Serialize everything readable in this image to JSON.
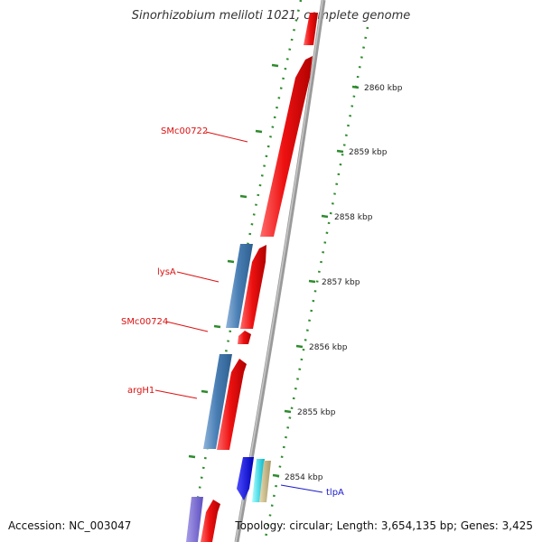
{
  "header": {
    "title": "Sinorhizobium meliloti 1021, complete genome"
  },
  "footer": {
    "accession": "Accession: NC_003047",
    "summary": "Topology: circular; Length: 3,654,135 bp; Genes: 3,425"
  },
  "colors": {
    "forward_gene": "#ee1111",
    "reverse_gene": "#4a7fb5",
    "backbone": "#8c8c8c",
    "tick": "#2e8b2e",
    "gene_label": "#dd1111",
    "special_label": "#1a1acc"
  },
  "map": {
    "kbp_labels": [
      "2860 kbp",
      "2859 kbp",
      "2858 kbp",
      "2857 kbp",
      "2856 kbp",
      "2855 kbp",
      "2854 kbp"
    ],
    "gene_labels": [
      "SMc00722",
      "lysA",
      "SMc00724",
      "argH1",
      "tlpA"
    ]
  }
}
